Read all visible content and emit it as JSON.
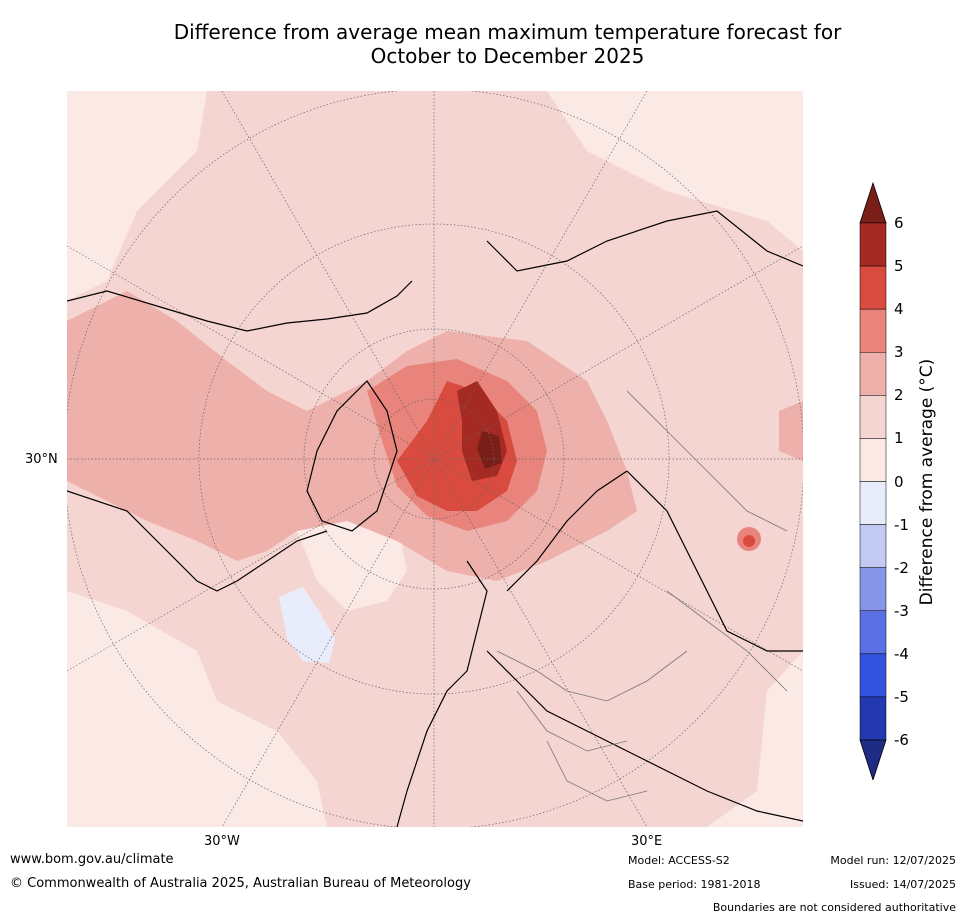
{
  "title_line1": "Difference from average mean maximum temperature forecast for",
  "title_line2": "October to December 2025",
  "map": {
    "projection": "north-polar-stereographic",
    "lon_labels": [
      "30°W",
      "30°E"
    ],
    "lat_labels": [
      "30°N"
    ],
    "base_color": "#fbe9e6"
  },
  "colorbar": {
    "label": "Difference from average (°C)",
    "ticks": [
      "6",
      "5",
      "4",
      "3",
      "2",
      "1",
      "0",
      "-1",
      "-2",
      "-3",
      "-4",
      "-5",
      "-6"
    ],
    "bins": [
      {
        "range": "5 to 6",
        "color": "#a52a24"
      },
      {
        "range": "4 to 5",
        "color": "#d94a3f"
      },
      {
        "range": "3 to 4",
        "color": "#e8847b"
      },
      {
        "range": "2 to 3",
        "color": "#eeb0aa"
      },
      {
        "range": "1 to 2",
        "color": "#f5d5d1"
      },
      {
        "range": "0 to 1",
        "color": "#fbe9e6"
      },
      {
        "range": "-1 to 0",
        "color": "#e9ecfb"
      },
      {
        "range": "-2 to -1",
        "color": "#c2c9f2"
      },
      {
        "range": "-3 to -2",
        "color": "#8896ea"
      },
      {
        "range": "-4 to -3",
        "color": "#5b70e3"
      },
      {
        "range": "-5 to -4",
        "color": "#3352dd"
      },
      {
        "range": "-6 to -5",
        "color": "#2439b0"
      }
    ],
    "over_color": "#7a1e18",
    "under_color": "#1f2c85"
  },
  "footer": {
    "website": "www.bom.gov.au/climate",
    "copyright": "© Commonwealth of Australia 2025, Australian Bureau of Meteorology",
    "model": "Model: ACCESS-S2",
    "base_period": "Base period: 1981-2018",
    "model_run": "Model run: 12/07/2025",
    "issued": "Issued: 14/07/2025",
    "disclaimer": "Boundaries are not considered authoritative"
  }
}
